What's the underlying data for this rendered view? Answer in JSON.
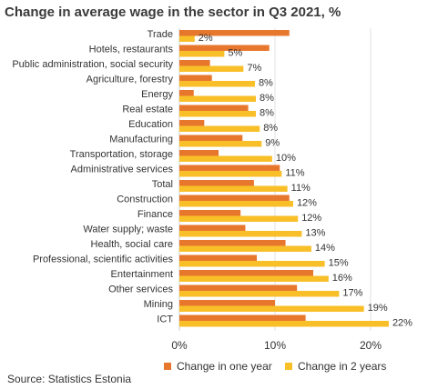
{
  "chart_data": {
    "type": "bar",
    "orientation": "horizontal",
    "title": "Change in average wage in the sector in Q3 2021, %",
    "categories": [
      "Trade",
      "Hotels, restaurants",
      "Public administration, social security",
      "Agriculture, forestry",
      "Energy",
      "Real estate",
      "Education",
      "Manufacturing",
      "Transportation, storage",
      "Administrative services",
      "Total",
      "Construction",
      "Finance",
      "Water supply; waste",
      "Health, social care",
      "Professional, scientific activities",
      "Entertainment",
      "Other services",
      "Mining",
      "ICT"
    ],
    "series": [
      {
        "name": "Change in one year",
        "color": "#e8772e",
        "values": [
          11.5,
          9.4,
          3.2,
          3.4,
          1.5,
          7.2,
          2.6,
          6.6,
          4.1,
          10.5,
          7.8,
          11.5,
          6.4,
          6.9,
          11.1,
          8.1,
          14.0,
          12.3,
          10.0,
          13.2
        ]
      },
      {
        "name": "Change in 2 years",
        "color": "#f8bf28",
        "values": [
          1.6,
          4.7,
          6.7,
          7.9,
          8.0,
          8.0,
          8.4,
          8.6,
          9.7,
          10.7,
          11.3,
          11.9,
          12.4,
          12.8,
          13.8,
          15.2,
          15.6,
          16.7,
          19.3,
          21.9
        ]
      }
    ],
    "data_labels": [
      "2%",
      "5%",
      "7%",
      "8%",
      "8%",
      "8%",
      "8%",
      "9%",
      "10%",
      "11%",
      "11%",
      "12%",
      "12%",
      "13%",
      "14%",
      "15%",
      "16%",
      "17%",
      "19%",
      "22%"
    ],
    "x_ticks": [
      "0%",
      "10%",
      "20%"
    ],
    "xlim": [
      0,
      23
    ],
    "grid": true,
    "legend_position": "bottom"
  },
  "source": "Source: Statistics Estonia"
}
